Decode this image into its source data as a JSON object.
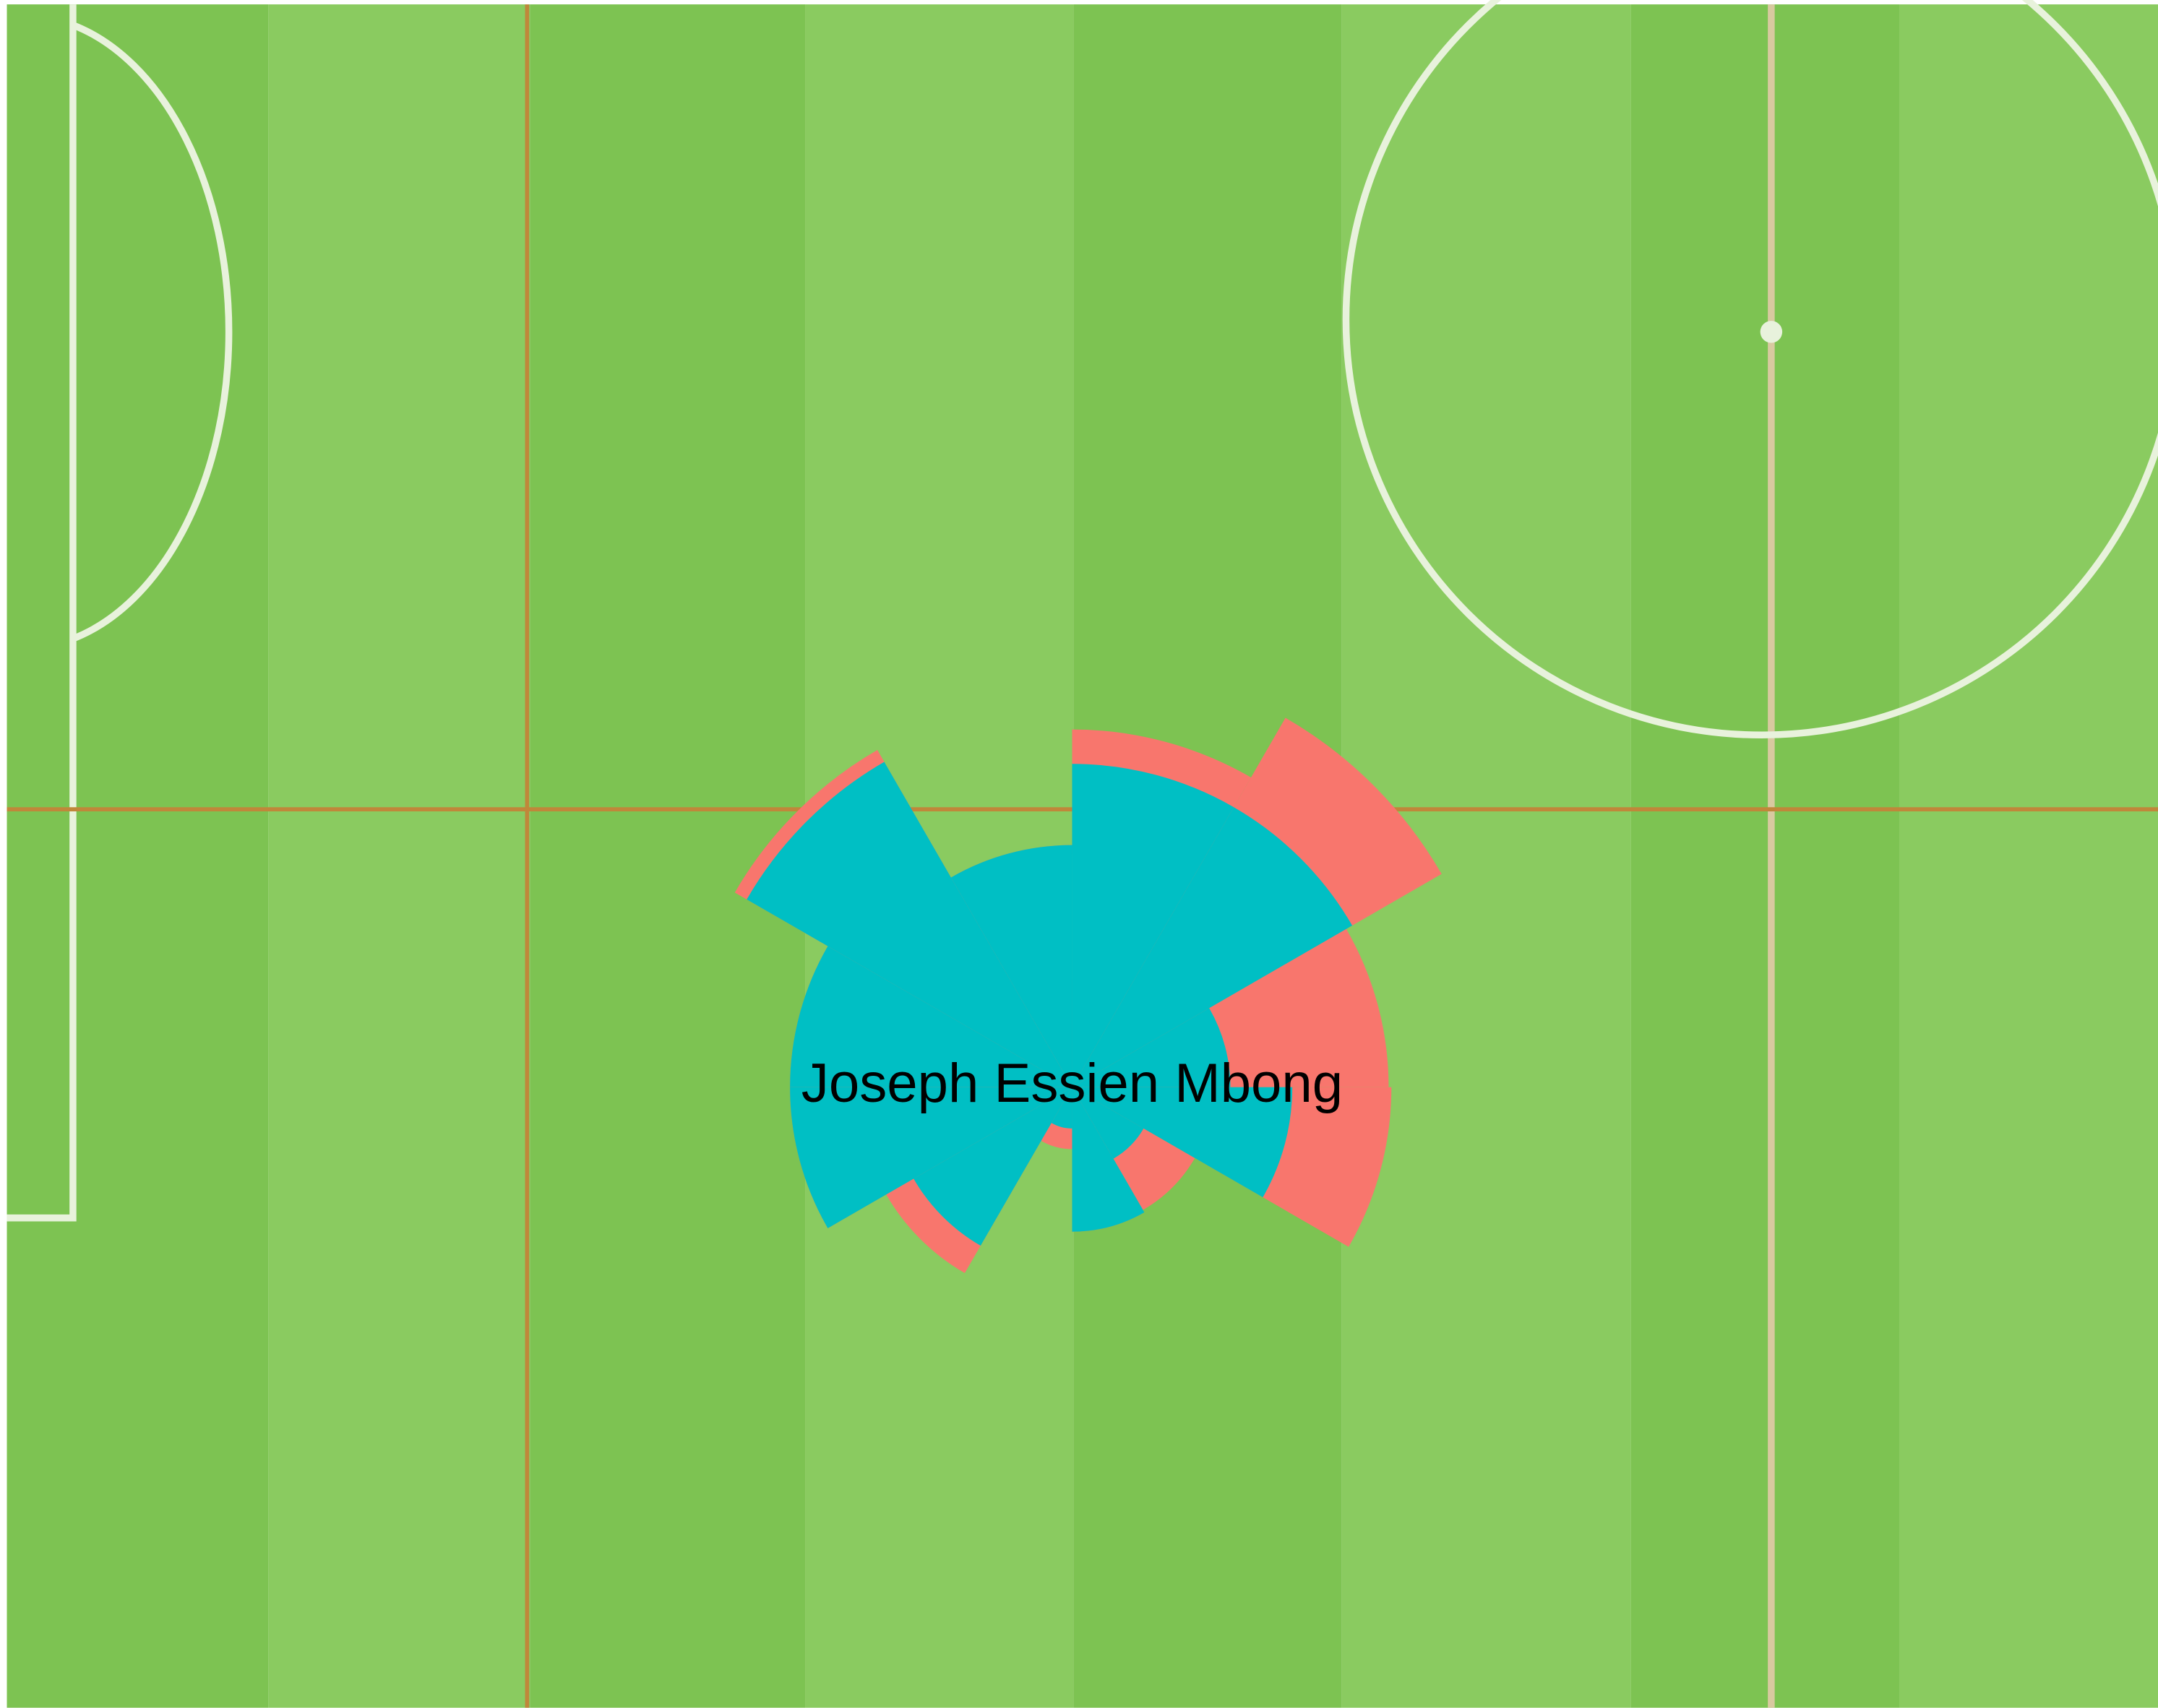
{
  "chart_data": {
    "type": "polar-bar",
    "label": "Joseph Essien Mbong",
    "series": [
      {
        "color": "#f8766d",
        "values": [
          260,
          310,
          230,
          232,
          103,
          105,
          45,
          156,
          205,
          205,
          283,
          176
        ]
      },
      {
        "color": "#00bfc4",
        "values": [
          235,
          235,
          115,
          160,
          60,
          105,
          30,
          133,
          205,
          205,
          273,
          176
        ]
      }
    ]
  }
}
